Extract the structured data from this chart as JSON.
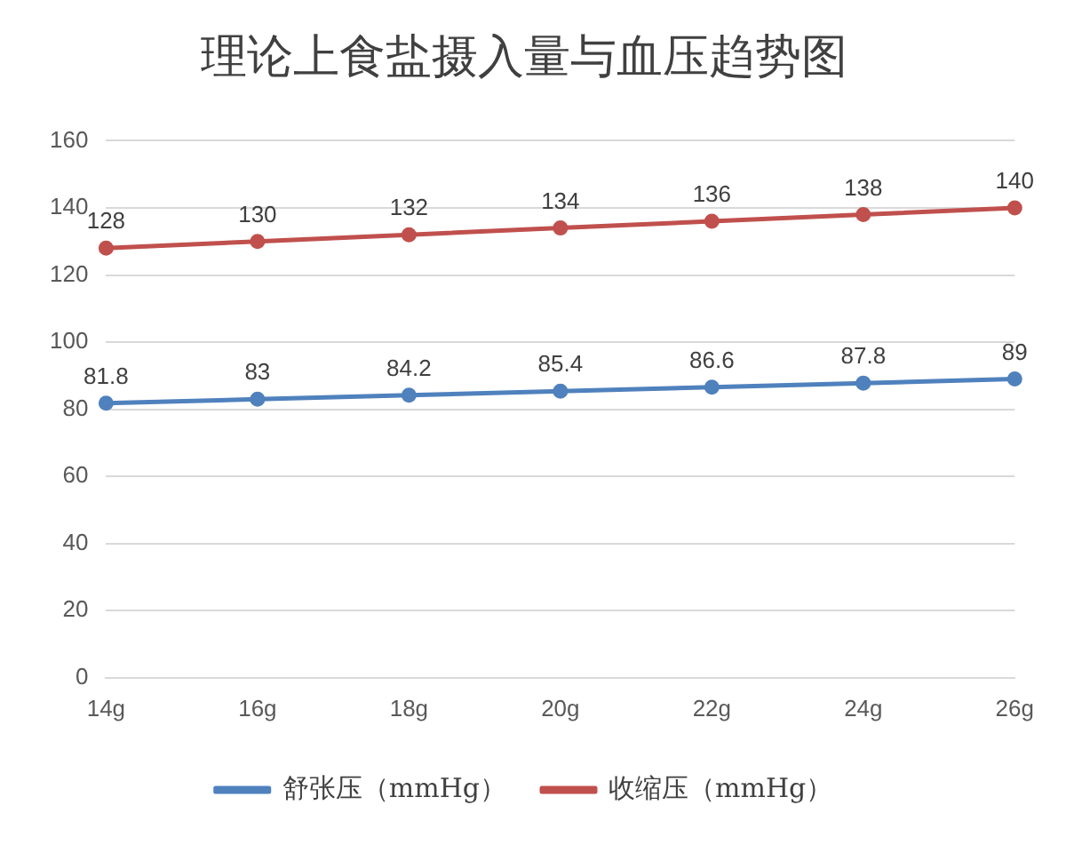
{
  "chart_data": {
    "type": "line",
    "title": "理论上食盐摄入量与血压趋势图",
    "categories": [
      "14g",
      "16g",
      "18g",
      "20g",
      "22g",
      "24g",
      "26g"
    ],
    "series": [
      {
        "name": "舒张压（mmHg）",
        "color": "#4f81bd",
        "values": [
          81.8,
          83,
          84.2,
          85.4,
          86.6,
          87.8,
          89
        ]
      },
      {
        "name": "收缩压（mmHg）",
        "color": "#c0504d",
        "values": [
          128,
          130,
          132,
          134,
          136,
          138,
          140
        ]
      }
    ],
    "ylim": [
      0,
      160
    ],
    "yticks": [
      0,
      20,
      40,
      60,
      80,
      100,
      120,
      140,
      160
    ],
    "grid": "y",
    "legend": "bottom",
    "marker": "circle",
    "line_style": "solid",
    "data_labels": true
  }
}
